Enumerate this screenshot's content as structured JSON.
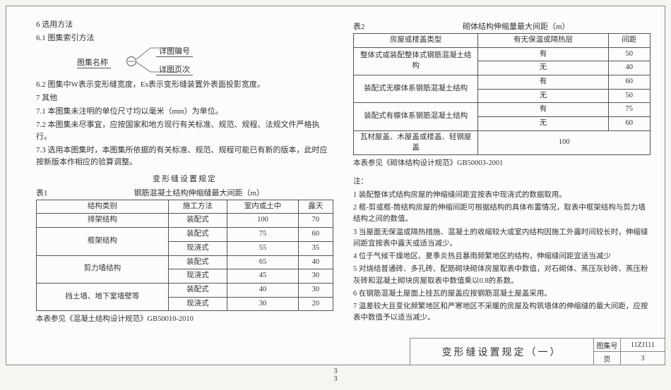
{
  "left": {
    "h6": "6  选用方法",
    "h61": "6.1  图集索引方法",
    "ref": {
      "name": "图集名称",
      "num": "详图编号",
      "page": "详图页次"
    },
    "h62": "6.2  图集中W表示变形缝宽度，Es表示变形缝装置外表面投影宽度。",
    "h7": "7  其他",
    "p71": "7.1  本图集未注明的单位尺寸均以毫米（mm）为单位。",
    "p72": "7.2  本图集未尽事宜，应按国家和地方现行有关标准、规范、规程、法规文件严格执行。",
    "p73": "7.3  选用本图集时，本图集所依据的有关标准、规范、规程可能已有新的版本，此时应按新版本作相应的验算调整。",
    "reg_title": "变形缝设置规定",
    "table1": {
      "label": "表1",
      "caption": "钢筋混凝土结构伸缩缝最大间距（m）",
      "headers": [
        "结构类别",
        "施工方法",
        "室内或土中",
        "露天"
      ],
      "rows": [
        {
          "cat": "排架结构",
          "rowspan": 1,
          "cells": [
            "装配式",
            "100",
            "70"
          ]
        },
        {
          "cat": "框架结构",
          "rowspan": 2,
          "cells": [
            "装配式",
            "75",
            "60"
          ]
        },
        {
          "cells": [
            "现浇式",
            "55",
            "35"
          ]
        },
        {
          "cat": "剪力墙结构",
          "rowspan": 2,
          "cells": [
            "装配式",
            "65",
            "40"
          ]
        },
        {
          "cells": [
            "现浇式",
            "45",
            "30"
          ]
        },
        {
          "cat": "挡土墙、地下室墙壁等",
          "rowspan": 2,
          "cells": [
            "装配式",
            "40",
            "30"
          ]
        },
        {
          "cells": [
            "现浇式",
            "30",
            "20"
          ]
        }
      ],
      "footnote": "本表参见《混凝土结构设计规范》GB50010-2010"
    }
  },
  "right": {
    "table2": {
      "label": "表2",
      "caption": "砌体结构伸缩量最大间距（m）",
      "headers": [
        "房屋或楼盖类型",
        "有无保温或隔热层",
        "间距"
      ],
      "rows": [
        {
          "cat": "整体式或装配整体式钢筋混凝土结构",
          "rowspan": 2,
          "cells": [
            "有",
            "50"
          ]
        },
        {
          "cells": [
            "无",
            "40"
          ]
        },
        {
          "cat": "装配式无檩体系钢筋混凝土结构",
          "rowspan": 2,
          "cells": [
            "有",
            "60"
          ]
        },
        {
          "cells": [
            "无",
            "50"
          ]
        },
        {
          "cat": "装配式有檩体系钢筋混凝土结构",
          "rowspan": 2,
          "cells": [
            "有",
            "75"
          ]
        },
        {
          "cells": [
            "无",
            "60"
          ]
        },
        {
          "cat": "瓦材屋盖、木屋盖或楼盖、轻钢屋盖",
          "rowspan": 1,
          "colspan": 2,
          "cells": [
            "100"
          ]
        }
      ],
      "footnote": "本表参见《砌体结构设计规范》GB50003-2001"
    },
    "notes_label": "注：",
    "notes": [
      "1  装配整体式结构房屋的伸缩缝间距宜按表中现浇式的数据取用。",
      "2  框-剪或框-筒结构房屋的伸缩间距可根据结构的具体布置情况，取表中框架结构与剪力墙结构之间的数值。",
      "3  当屋面无保温或隔热措施、混凝土的收缩较大或室内结构因施工外露时间较长时，伸缩缝间距宜按表中露天或适当减少。",
      "4  位于气候干燥地区、夏季炎热且暴雨频繁地区的结构，伸缩缝间距宜适当减少",
      "5  对烧结普通砖、多孔砖、配筋砌块砌体房屋取表中数值，对石砌体、蒸压灰砂砖、蒸压粉灰砖和混凝土砌块房屋取表中数值乘以0.8的系数。",
      "6  在钢筋混凝土屋面上挂瓦的屋盖应按钢筋混凝土屋盖采用。",
      "7  温差较大且变化频繁地区和严寒地区不采暖的房屋及构筑墙体的伸缩缝的最大间距，应按表中数值予以适当减少。"
    ]
  },
  "title_block": {
    "title": "变形缝设置规定（一）",
    "set_label": "图集号",
    "set_val": "11ZJ111",
    "page_label": "页",
    "page_val": "3"
  },
  "page_num": "3",
  "page_num2": "3"
}
